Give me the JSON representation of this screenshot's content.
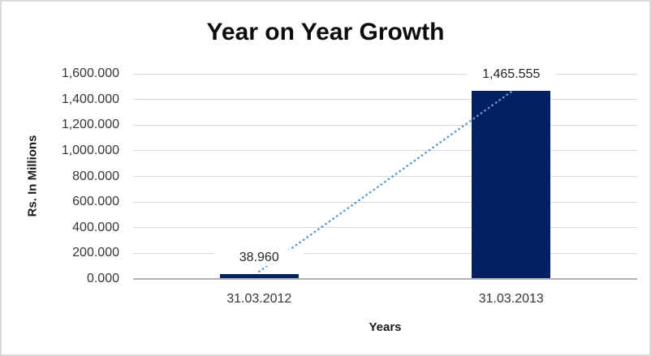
{
  "title": "Year on Year Growth",
  "chart_data": {
    "type": "bar",
    "title": "Year on Year Growth",
    "categories": [
      "31.03.2012",
      "31.03.2013"
    ],
    "values": [
      38.96,
      1465.555
    ],
    "data_labels": [
      "38.960",
      "1,465.555"
    ],
    "xlabel": "Years",
    "ylabel": "Rs. In Millions",
    "ylim": [
      0,
      1600
    ],
    "ytick_step": 200,
    "ytick_labels": [
      "0.000",
      "200.000",
      "400.000",
      "600.000",
      "800.000",
      "1,000.000",
      "1,200.000",
      "1,400.000",
      "1,600.000"
    ],
    "grid": true,
    "legend": "none",
    "colors": {
      "bar": "#052061",
      "trendline": "#5b9bd5",
      "gridline": "#d9d9d9",
      "axis_line": "#b3b3b3",
      "text": "#363636"
    },
    "trendline": {
      "style": "dotted",
      "from_category": "31.03.2012",
      "to_category": "31.03.2013"
    }
  }
}
